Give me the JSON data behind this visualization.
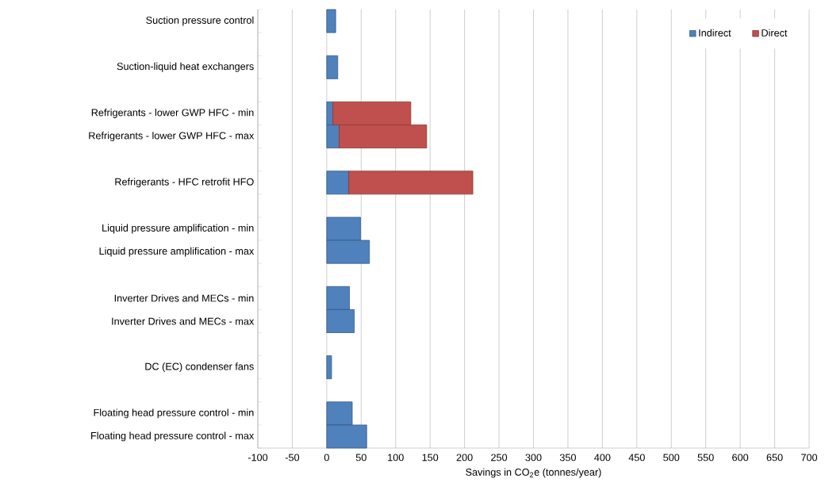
{
  "chart_data": {
    "type": "bar",
    "orientation": "horizontal",
    "stacked": true,
    "categories": [
      "Suction pressure control",
      null,
      "Suction-liquid heat exchangers",
      null,
      "Refrigerants - lower GWP HFC - min",
      "Refrigerants - lower GWP HFC - max",
      null,
      "Refrigerants - HFC retrofit HFO",
      null,
      "Liquid pressure amplification - min",
      "Liquid pressure amplification - max",
      null,
      "Inverter Drives and MECs - min",
      "Inverter Drives and MECs - max",
      null,
      "DC (EC) condenser fans",
      null,
      "Floating head pressure control - min",
      "Floating head pressure control - max"
    ],
    "series": [
      {
        "name": "Indirect",
        "color": "#4f81bd",
        "values": [
          13,
          null,
          16,
          null,
          9,
          18,
          null,
          32,
          null,
          49,
          62,
          null,
          33,
          40,
          null,
          7,
          null,
          37,
          58
        ]
      },
      {
        "name": "Direct",
        "color": "#c0504d",
        "values": [
          null,
          null,
          null,
          null,
          113,
          127,
          null,
          180,
          null,
          null,
          null,
          null,
          null,
          null,
          null,
          null,
          null,
          null,
          null
        ]
      }
    ],
    "xlim": [
      -100,
      700
    ],
    "xticks": [
      -100,
      -50,
      0,
      50,
      100,
      150,
      200,
      250,
      300,
      350,
      400,
      450,
      500,
      550,
      600,
      650,
      700
    ],
    "xlabel": "Savings in CO$_{2}$e (tonnes/year)",
    "grid": "x",
    "legend": "top right"
  }
}
